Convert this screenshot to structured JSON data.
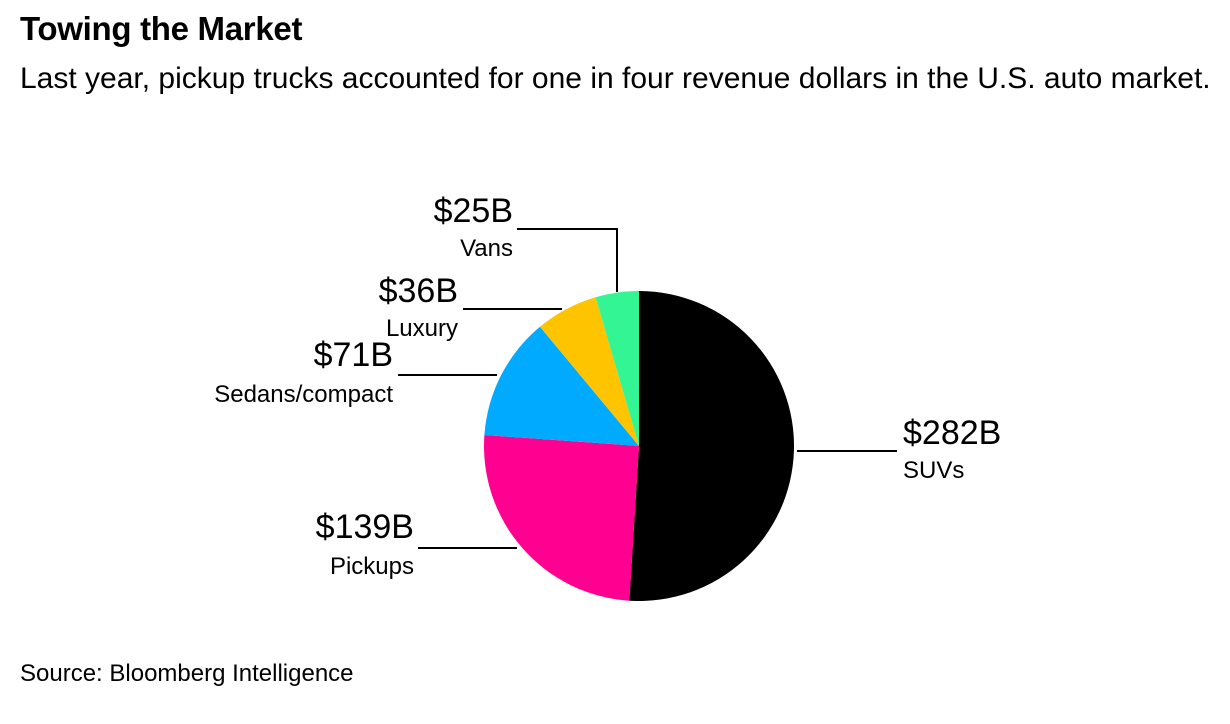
{
  "title": "Towing the Market",
  "subtitle": "Last year, pickup trucks accounted for one in four revenue dollars in the U.S. auto market.",
  "source": "Source: Bloomberg Intelligence",
  "chart_data": {
    "type": "pie",
    "title": "Towing the Market",
    "unit": "$B",
    "slices": [
      {
        "category": "SUVs",
        "value": 282,
        "label": "$282B",
        "color": "#000000"
      },
      {
        "category": "Pickups",
        "value": 139,
        "label": "$139B",
        "color": "#ff0090"
      },
      {
        "category": "Sedans/compact",
        "value": 71,
        "label": "$71B",
        "color": "#00aaff"
      },
      {
        "category": "Luxury",
        "value": 36,
        "label": "$36B",
        "color": "#ffc400"
      },
      {
        "category": "Vans",
        "value": 25,
        "label": "$25B",
        "color": "#33f594"
      }
    ]
  }
}
